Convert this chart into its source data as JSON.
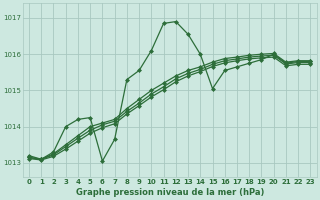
{
  "title": "Graphe pression niveau de la mer (hPa)",
  "background_color": "#cde8e0",
  "grid_color": "#a8c8c0",
  "line_color": "#2d6e3a",
  "xlim": [
    -0.5,
    23.5
  ],
  "ylim": [
    1012.6,
    1017.4
  ],
  "yticks": [
    1013,
    1014,
    1015,
    1016,
    1017
  ],
  "xtick_labels": [
    "0",
    "1",
    "2",
    "3",
    "4",
    "5",
    "6",
    "7",
    "8",
    "9",
    "10",
    "11",
    "12",
    "13",
    "14",
    "15",
    "16",
    "17",
    "18",
    "19",
    "20",
    "21",
    "22",
    "23"
  ],
  "series": [
    [
      1013.2,
      1013.1,
      1013.3,
      1014.0,
      1014.2,
      1014.25,
      1013.05,
      1013.65,
      1015.3,
      1015.55,
      1016.1,
      1016.85,
      1016.9,
      1016.55,
      1016.0,
      1015.05,
      1015.55,
      1015.65,
      1015.75,
      1015.85,
      1016.0,
      1015.75,
      1015.8,
      1015.8
    ],
    [
      1013.15,
      1013.1,
      1013.25,
      1013.5,
      1013.75,
      1014.0,
      1014.1,
      1014.2,
      1014.5,
      1014.75,
      1015.0,
      1015.2,
      1015.4,
      1015.55,
      1015.65,
      1015.78,
      1015.88,
      1015.92,
      1015.97,
      1016.0,
      1016.02,
      1015.78,
      1015.82,
      1015.82
    ],
    [
      1013.15,
      1013.1,
      1013.22,
      1013.45,
      1013.68,
      1013.9,
      1014.05,
      1014.15,
      1014.42,
      1014.65,
      1014.9,
      1015.1,
      1015.32,
      1015.47,
      1015.58,
      1015.72,
      1015.82,
      1015.87,
      1015.92,
      1015.95,
      1015.97,
      1015.73,
      1015.77,
      1015.77
    ],
    [
      1013.12,
      1013.08,
      1013.18,
      1013.38,
      1013.6,
      1013.82,
      1013.97,
      1014.08,
      1014.35,
      1014.58,
      1014.82,
      1015.02,
      1015.24,
      1015.4,
      1015.52,
      1015.66,
      1015.76,
      1015.82,
      1015.87,
      1015.9,
      1015.92,
      1015.68,
      1015.72,
      1015.72
    ]
  ],
  "marker": "D",
  "markersize": 2.0,
  "linewidth": 0.9,
  "tick_fontsize": 5.0,
  "label_fontsize": 6.0
}
